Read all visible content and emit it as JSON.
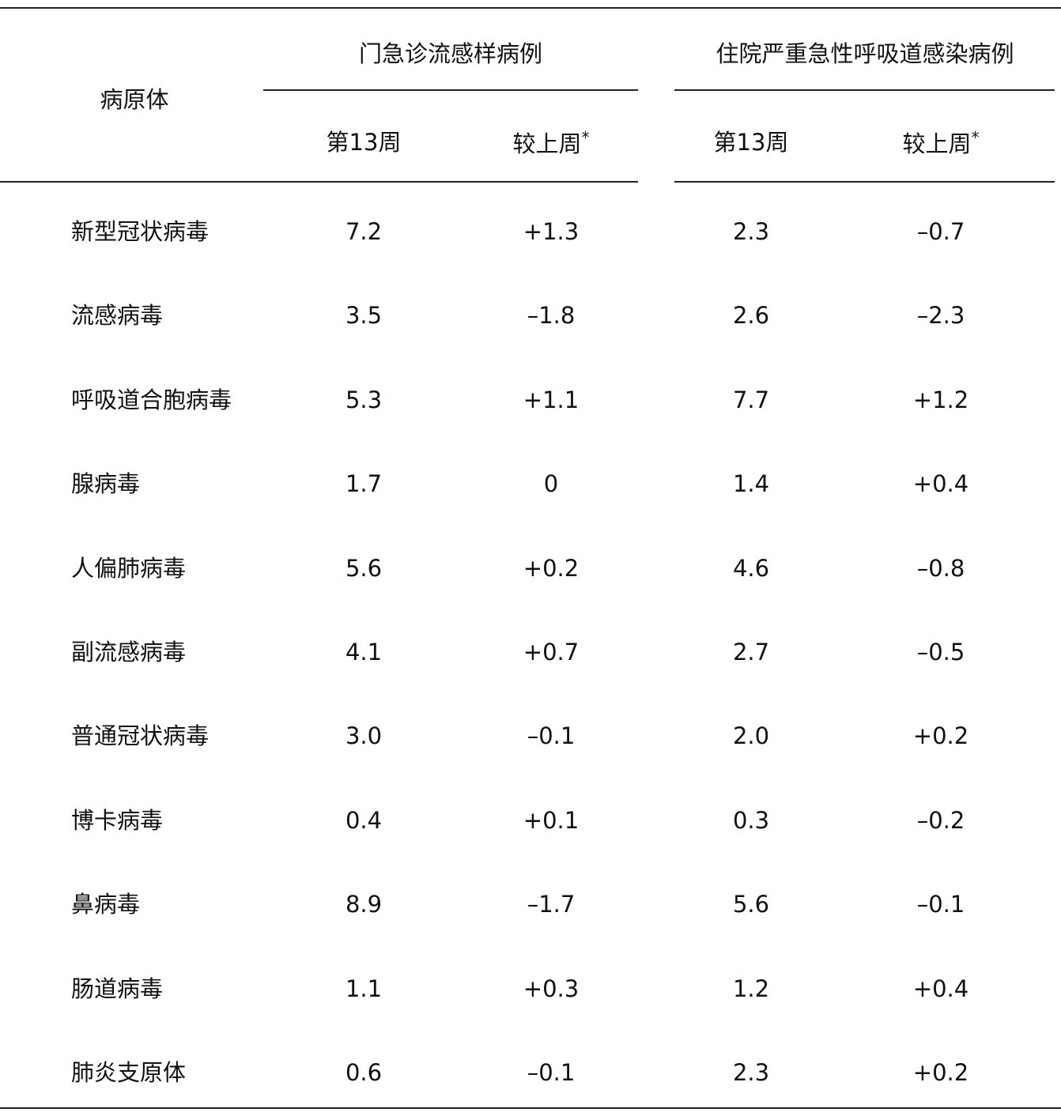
{
  "table": {
    "row_header": "病原体",
    "groups": [
      {
        "label": "门急诊流感样病例",
        "sub": [
          "第13周",
          "较上周"
        ]
      },
      {
        "label": "住院严重急性呼吸道感染病例",
        "sub": [
          "第13周",
          "较上周"
        ]
      }
    ],
    "footnote_mark": "*",
    "rows": [
      {
        "name": "新型冠状病毒",
        "values": [
          "7.2",
          "+1.3",
          "2.3",
          "–0.7"
        ]
      },
      {
        "name": "流感病毒",
        "values": [
          "3.5",
          "–1.8",
          "2.6",
          "–2.3"
        ]
      },
      {
        "name": "呼吸道合胞病毒",
        "values": [
          "5.3",
          "+1.1",
          "7.7",
          "+1.2"
        ]
      },
      {
        "name": "腺病毒",
        "values": [
          "1.7",
          "0",
          "1.4",
          "+0.4"
        ]
      },
      {
        "name": "人偏肺病毒",
        "values": [
          "5.6",
          "+0.2",
          "4.6",
          "–0.8"
        ]
      },
      {
        "name": "副流感病毒",
        "values": [
          "4.1",
          "+0.7",
          "2.7",
          "–0.5"
        ]
      },
      {
        "name": "普通冠状病毒",
        "values": [
          "3.0",
          "–0.1",
          "2.0",
          "+0.2"
        ]
      },
      {
        "name": "博卡病毒",
        "values": [
          "0.4",
          "+0.1",
          "0.3",
          "–0.2"
        ]
      },
      {
        "name": "鼻病毒",
        "values": [
          "8.9",
          "–1.7",
          "5.6",
          "–0.1"
        ]
      },
      {
        "name": "肠道病毒",
        "values": [
          "1.1",
          "+0.3",
          "1.2",
          "+0.4"
        ]
      },
      {
        "name": "肺炎支原体",
        "values": [
          "0.6",
          "–0.1",
          "2.3",
          "+0.2"
        ]
      }
    ]
  }
}
